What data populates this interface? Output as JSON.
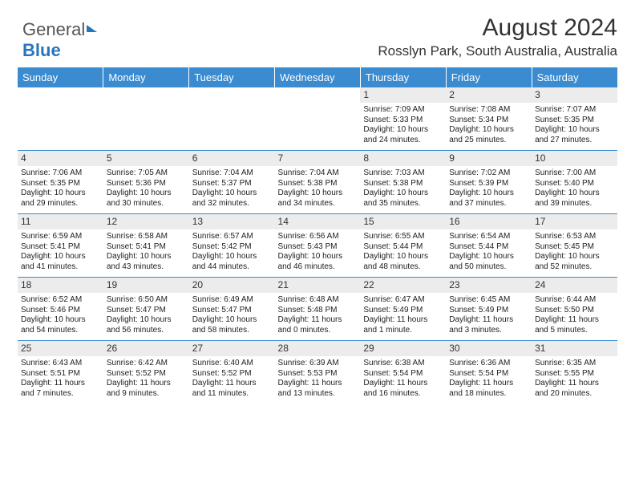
{
  "brand": {
    "part1": "General",
    "part2": "Blue"
  },
  "title": "August 2024",
  "location": "Rosslyn Park, South Australia, Australia",
  "colors": {
    "header_bg": "#3a8bd0",
    "header_text": "#ffffff",
    "daynum_bg": "#ececec",
    "border": "#3a8bd0"
  },
  "day_headers": [
    "Sunday",
    "Monday",
    "Tuesday",
    "Wednesday",
    "Thursday",
    "Friday",
    "Saturday"
  ],
  "weeks": [
    [
      null,
      null,
      null,
      null,
      {
        "n": "1",
        "sr": "Sunrise: 7:09 AM",
        "ss": "Sunset: 5:33 PM",
        "dl": "Daylight: 10 hours and 24 minutes."
      },
      {
        "n": "2",
        "sr": "Sunrise: 7:08 AM",
        "ss": "Sunset: 5:34 PM",
        "dl": "Daylight: 10 hours and 25 minutes."
      },
      {
        "n": "3",
        "sr": "Sunrise: 7:07 AM",
        "ss": "Sunset: 5:35 PM",
        "dl": "Daylight: 10 hours and 27 minutes."
      }
    ],
    [
      {
        "n": "4",
        "sr": "Sunrise: 7:06 AM",
        "ss": "Sunset: 5:35 PM",
        "dl": "Daylight: 10 hours and 29 minutes."
      },
      {
        "n": "5",
        "sr": "Sunrise: 7:05 AM",
        "ss": "Sunset: 5:36 PM",
        "dl": "Daylight: 10 hours and 30 minutes."
      },
      {
        "n": "6",
        "sr": "Sunrise: 7:04 AM",
        "ss": "Sunset: 5:37 PM",
        "dl": "Daylight: 10 hours and 32 minutes."
      },
      {
        "n": "7",
        "sr": "Sunrise: 7:04 AM",
        "ss": "Sunset: 5:38 PM",
        "dl": "Daylight: 10 hours and 34 minutes."
      },
      {
        "n": "8",
        "sr": "Sunrise: 7:03 AM",
        "ss": "Sunset: 5:38 PM",
        "dl": "Daylight: 10 hours and 35 minutes."
      },
      {
        "n": "9",
        "sr": "Sunrise: 7:02 AM",
        "ss": "Sunset: 5:39 PM",
        "dl": "Daylight: 10 hours and 37 minutes."
      },
      {
        "n": "10",
        "sr": "Sunrise: 7:00 AM",
        "ss": "Sunset: 5:40 PM",
        "dl": "Daylight: 10 hours and 39 minutes."
      }
    ],
    [
      {
        "n": "11",
        "sr": "Sunrise: 6:59 AM",
        "ss": "Sunset: 5:41 PM",
        "dl": "Daylight: 10 hours and 41 minutes."
      },
      {
        "n": "12",
        "sr": "Sunrise: 6:58 AM",
        "ss": "Sunset: 5:41 PM",
        "dl": "Daylight: 10 hours and 43 minutes."
      },
      {
        "n": "13",
        "sr": "Sunrise: 6:57 AM",
        "ss": "Sunset: 5:42 PM",
        "dl": "Daylight: 10 hours and 44 minutes."
      },
      {
        "n": "14",
        "sr": "Sunrise: 6:56 AM",
        "ss": "Sunset: 5:43 PM",
        "dl": "Daylight: 10 hours and 46 minutes."
      },
      {
        "n": "15",
        "sr": "Sunrise: 6:55 AM",
        "ss": "Sunset: 5:44 PM",
        "dl": "Daylight: 10 hours and 48 minutes."
      },
      {
        "n": "16",
        "sr": "Sunrise: 6:54 AM",
        "ss": "Sunset: 5:44 PM",
        "dl": "Daylight: 10 hours and 50 minutes."
      },
      {
        "n": "17",
        "sr": "Sunrise: 6:53 AM",
        "ss": "Sunset: 5:45 PM",
        "dl": "Daylight: 10 hours and 52 minutes."
      }
    ],
    [
      {
        "n": "18",
        "sr": "Sunrise: 6:52 AM",
        "ss": "Sunset: 5:46 PM",
        "dl": "Daylight: 10 hours and 54 minutes."
      },
      {
        "n": "19",
        "sr": "Sunrise: 6:50 AM",
        "ss": "Sunset: 5:47 PM",
        "dl": "Daylight: 10 hours and 56 minutes."
      },
      {
        "n": "20",
        "sr": "Sunrise: 6:49 AM",
        "ss": "Sunset: 5:47 PM",
        "dl": "Daylight: 10 hours and 58 minutes."
      },
      {
        "n": "21",
        "sr": "Sunrise: 6:48 AM",
        "ss": "Sunset: 5:48 PM",
        "dl": "Daylight: 11 hours and 0 minutes."
      },
      {
        "n": "22",
        "sr": "Sunrise: 6:47 AM",
        "ss": "Sunset: 5:49 PM",
        "dl": "Daylight: 11 hours and 1 minute."
      },
      {
        "n": "23",
        "sr": "Sunrise: 6:45 AM",
        "ss": "Sunset: 5:49 PM",
        "dl": "Daylight: 11 hours and 3 minutes."
      },
      {
        "n": "24",
        "sr": "Sunrise: 6:44 AM",
        "ss": "Sunset: 5:50 PM",
        "dl": "Daylight: 11 hours and 5 minutes."
      }
    ],
    [
      {
        "n": "25",
        "sr": "Sunrise: 6:43 AM",
        "ss": "Sunset: 5:51 PM",
        "dl": "Daylight: 11 hours and 7 minutes."
      },
      {
        "n": "26",
        "sr": "Sunrise: 6:42 AM",
        "ss": "Sunset: 5:52 PM",
        "dl": "Daylight: 11 hours and 9 minutes."
      },
      {
        "n": "27",
        "sr": "Sunrise: 6:40 AM",
        "ss": "Sunset: 5:52 PM",
        "dl": "Daylight: 11 hours and 11 minutes."
      },
      {
        "n": "28",
        "sr": "Sunrise: 6:39 AM",
        "ss": "Sunset: 5:53 PM",
        "dl": "Daylight: 11 hours and 13 minutes."
      },
      {
        "n": "29",
        "sr": "Sunrise: 6:38 AM",
        "ss": "Sunset: 5:54 PM",
        "dl": "Daylight: 11 hours and 16 minutes."
      },
      {
        "n": "30",
        "sr": "Sunrise: 6:36 AM",
        "ss": "Sunset: 5:54 PM",
        "dl": "Daylight: 11 hours and 18 minutes."
      },
      {
        "n": "31",
        "sr": "Sunrise: 6:35 AM",
        "ss": "Sunset: 5:55 PM",
        "dl": "Daylight: 11 hours and 20 minutes."
      }
    ]
  ]
}
